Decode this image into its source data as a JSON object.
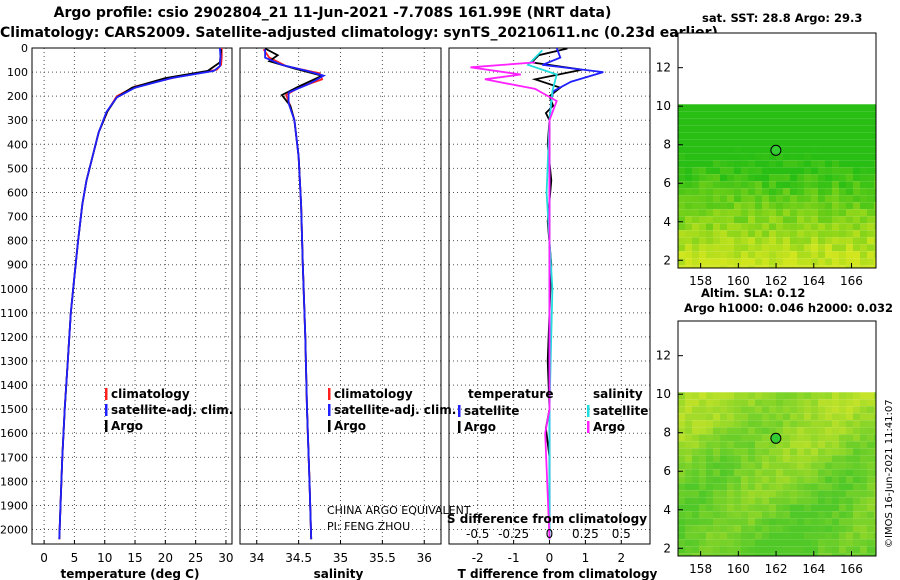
{
  "header": {
    "line1": "Argo profile: csio 2902804_21 11-Jun-2021 -7.708S 161.99E (NRT data)",
    "line2": "Climatology: CARS2009. Satellite-adjusted climatology: synTS_20210611.nc (0.23d earlier)"
  },
  "colors": {
    "climatology": "#ff2020",
    "satellite": "#2020ff",
    "argo": "#000000",
    "sal_satellite": "#22dddd",
    "sal_argo": "#ff22ff"
  },
  "chart_data": [
    {
      "type": "line",
      "panel": "temperature",
      "xlabel": "temperature (deg C)",
      "xlim": [
        -2,
        31
      ],
      "xticks": [
        "0",
        "5",
        "10",
        "15",
        "20",
        "25",
        "30"
      ],
      "ylim": [
        2060,
        0
      ],
      "yticks": [
        "0",
        "100",
        "200",
        "300",
        "400",
        "500",
        "600",
        "700",
        "800",
        "900",
        "1000",
        "1100",
        "1200",
        "1300",
        "1400",
        "1500",
        "1600",
        "1700",
        "1800",
        "1900",
        "2000"
      ],
      "grid": true,
      "legend": [
        "climatology",
        "satellite-adj. clim.",
        "Argo"
      ],
      "series": [
        {
          "name": "climatology",
          "points": [
            [
              29.3,
              0
            ],
            [
              29.3,
              40
            ],
            [
              29.2,
              70
            ],
            [
              28.5,
              90
            ],
            [
              22,
              120
            ],
            [
              15,
              160
            ],
            [
              12,
              200
            ],
            [
              10.5,
              260
            ],
            [
              9,
              350
            ],
            [
              8,
              450
            ],
            [
              7,
              550
            ],
            [
              6.3,
              650
            ],
            [
              5.6,
              800
            ],
            [
              5,
              950
            ],
            [
              4.4,
              1100
            ],
            [
              3.9,
              1300
            ],
            [
              3.4,
              1500
            ],
            [
              3,
              1700
            ],
            [
              2.7,
              1900
            ],
            [
              2.5,
              2040
            ]
          ]
        },
        {
          "name": "satellite-adj. clim.",
          "points": [
            [
              29,
              0
            ],
            [
              29.1,
              40
            ],
            [
              29,
              75
            ],
            [
              28,
              95
            ],
            [
              21,
              125
            ],
            [
              15,
              165
            ],
            [
              12,
              205
            ],
            [
              10.3,
              265
            ],
            [
              9,
              350
            ],
            [
              8,
              450
            ],
            [
              7,
              550
            ],
            [
              6.3,
              650
            ],
            [
              5.6,
              800
            ],
            [
              5,
              950
            ],
            [
              4.4,
              1100
            ],
            [
              3.9,
              1300
            ],
            [
              3.4,
              1500
            ],
            [
              3,
              1700
            ],
            [
              2.7,
              1900
            ],
            [
              2.5,
              2040
            ]
          ]
        },
        {
          "name": "Argo",
          "points": [
            [
              29.2,
              5
            ],
            [
              29,
              60
            ],
            [
              27,
              95
            ],
            [
              20,
              125
            ],
            [
              14.5,
              165
            ],
            [
              12,
              205
            ],
            [
              10.4,
              265
            ],
            [
              9,
              350
            ],
            [
              8,
              450
            ],
            [
              7,
              550
            ],
            [
              6.3,
              650
            ],
            [
              5.6,
              800
            ],
            [
              5,
              950
            ],
            [
              4.4,
              1100
            ],
            [
              3.9,
              1300
            ],
            [
              3.4,
              1500
            ],
            [
              3,
              1700
            ],
            [
              2.7,
              1900
            ],
            [
              2.5,
              2040
            ]
          ]
        }
      ]
    },
    {
      "type": "line",
      "panel": "salinity",
      "xlabel": "salinity",
      "xlim": [
        33.8,
        36.2
      ],
      "xticks": [
        "34",
        "34.5",
        "35",
        "35.5",
        "36"
      ],
      "ylim": [
        2060,
        0
      ],
      "grid": true,
      "legend": [
        "climatology",
        "satellite-adj. clim.",
        "Argo"
      ],
      "annotation": [
        "CHINA ARGO EQUIVALENT",
        "PI: FENG ZHOU"
      ],
      "series": [
        {
          "name": "climatology",
          "points": [
            [
              34.08,
              5
            ],
            [
              34.15,
              40
            ],
            [
              34.35,
              75
            ],
            [
              34.75,
              105
            ],
            [
              34.78,
              130
            ],
            [
              34.5,
              165
            ],
            [
              34.35,
              195
            ],
            [
              34.4,
              240
            ],
            [
              34.45,
              300
            ],
            [
              34.5,
              450
            ],
            [
              34.53,
              650
            ],
            [
              34.55,
              900
            ],
            [
              34.58,
              1200
            ],
            [
              34.6,
              1500
            ],
            [
              34.63,
              1800
            ],
            [
              34.65,
              2040
            ]
          ]
        },
        {
          "name": "satellite-adj. clim.",
          "points": [
            [
              34.1,
              5
            ],
            [
              34.1,
              40
            ],
            [
              34.3,
              70
            ],
            [
              34.6,
              95
            ],
            [
              34.8,
              115
            ],
            [
              34.62,
              150
            ],
            [
              34.38,
              185
            ],
            [
              34.38,
              230
            ],
            [
              34.45,
              300
            ],
            [
              34.5,
              450
            ],
            [
              34.53,
              650
            ],
            [
              34.55,
              900
            ],
            [
              34.58,
              1200
            ],
            [
              34.6,
              1500
            ],
            [
              34.63,
              1800
            ],
            [
              34.65,
              2040
            ]
          ]
        },
        {
          "name": "Argo",
          "points": [
            [
              34.1,
              2
            ],
            [
              34.25,
              30
            ],
            [
              34.15,
              55
            ],
            [
              34.45,
              85
            ],
            [
              34.78,
              115
            ],
            [
              34.5,
              160
            ],
            [
              34.3,
              195
            ],
            [
              34.4,
              240
            ],
            [
              34.45,
              300
            ],
            [
              34.5,
              450
            ],
            [
              34.53,
              650
            ],
            [
              34.55,
              900
            ],
            [
              34.58,
              1200
            ],
            [
              34.6,
              1500
            ],
            [
              34.63,
              1800
            ],
            [
              34.65,
              2040
            ]
          ]
        }
      ]
    },
    {
      "type": "line",
      "panel": "difference",
      "xlabel": "T difference from climatology",
      "xlabel_top": "S difference from climatology",
      "xlim": [
        -2.8,
        2.8
      ],
      "xticks": [
        "-2",
        "-1",
        "0",
        "1",
        "2"
      ],
      "xticks_s": [
        "-0.5",
        "-0.25",
        "0",
        "0.25",
        "0.5"
      ],
      "ylim": [
        2060,
        0
      ],
      "grid": true,
      "legend_left_title": "temperature",
      "legend_right_title": "salinity",
      "legend": [
        "satellite",
        "Argo",
        "satellite",
        "Argo"
      ],
      "series": [
        {
          "name": "T satellite",
          "points": [
            [
              0.2,
              0
            ],
            [
              0.3,
              40
            ],
            [
              -0.2,
              70
            ],
            [
              1.5,
              100
            ],
            [
              0.6,
              140
            ],
            [
              0.1,
              180
            ],
            [
              0.05,
              220
            ],
            [
              0,
              300
            ],
            [
              0,
              600
            ],
            [
              0,
              1000
            ],
            [
              0,
              1500
            ],
            [
              0,
              2040
            ]
          ]
        },
        {
          "name": "T Argo",
          "points": [
            [
              0.5,
              2
            ],
            [
              -0.3,
              30
            ],
            [
              -0.5,
              60
            ],
            [
              0.9,
              90
            ],
            [
              -0.4,
              130
            ],
            [
              0.3,
              165
            ],
            [
              0,
              200
            ],
            [
              0.1,
              240
            ],
            [
              -0.1,
              270
            ],
            [
              0,
              300
            ],
            [
              -0.05,
              400
            ],
            [
              0.05,
              550
            ],
            [
              -0.05,
              720
            ],
            [
              0.05,
              900
            ],
            [
              -0.05,
              1300
            ],
            [
              0,
              1500
            ],
            [
              -0.1,
              1580
            ],
            [
              0,
              1700
            ],
            [
              0,
              2040
            ]
          ]
        },
        {
          "name": "S satellite",
          "points": [
            [
              -0.05,
              10
            ],
            [
              -0.15,
              70
            ],
            [
              0.05,
              110
            ],
            [
              0.02,
              180
            ],
            [
              0,
              300
            ],
            [
              -0.02,
              600
            ],
            [
              0.02,
              1000
            ],
            [
              0,
              1500
            ],
            [
              0,
              2040
            ]
          ]
        },
        {
          "name": "S Argo",
          "points": [
            [
              -0.1,
              60
            ],
            [
              -0.55,
              80
            ],
            [
              -0.2,
              110
            ],
            [
              -0.45,
              130
            ],
            [
              -0.1,
              170
            ],
            [
              0.05,
              220
            ],
            [
              0,
              300
            ],
            [
              0,
              700
            ],
            [
              0,
              1100
            ],
            [
              0,
              1500
            ],
            [
              -0.03,
              1600
            ],
            [
              0,
              2040
            ]
          ]
        }
      ]
    },
    {
      "type": "heatmap",
      "panel": "sst-map",
      "title": "sat. SST: 28.8 Argo: 29.3",
      "xticks": [
        "158",
        "160",
        "162",
        "164",
        "166"
      ],
      "yticks": [
        "2",
        "4",
        "6",
        "8",
        "10",
        "12"
      ],
      "xlim": [
        156.8,
        167.3
      ],
      "ylim": [
        1.6,
        13.8
      ],
      "data_top": 10.1,
      "profile_point": [
        161.99,
        7.71
      ]
    },
    {
      "type": "heatmap",
      "panel": "sla-map",
      "title": "Altim. SLA: 0.12",
      "subtitle": "Argo h1000: 0.046 h2000: 0.032",
      "xticks": [
        "158",
        "160",
        "162",
        "164",
        "166"
      ],
      "yticks": [
        "2",
        "4",
        "6",
        "8",
        "10",
        "12"
      ],
      "xlim": [
        156.8,
        167.3
      ],
      "ylim": [
        1.6,
        13.8
      ],
      "data_top": 10.1,
      "profile_point": [
        161.99,
        7.71
      ]
    }
  ],
  "stamp": "©IMOS 16-Jun-2021 11:41:07"
}
